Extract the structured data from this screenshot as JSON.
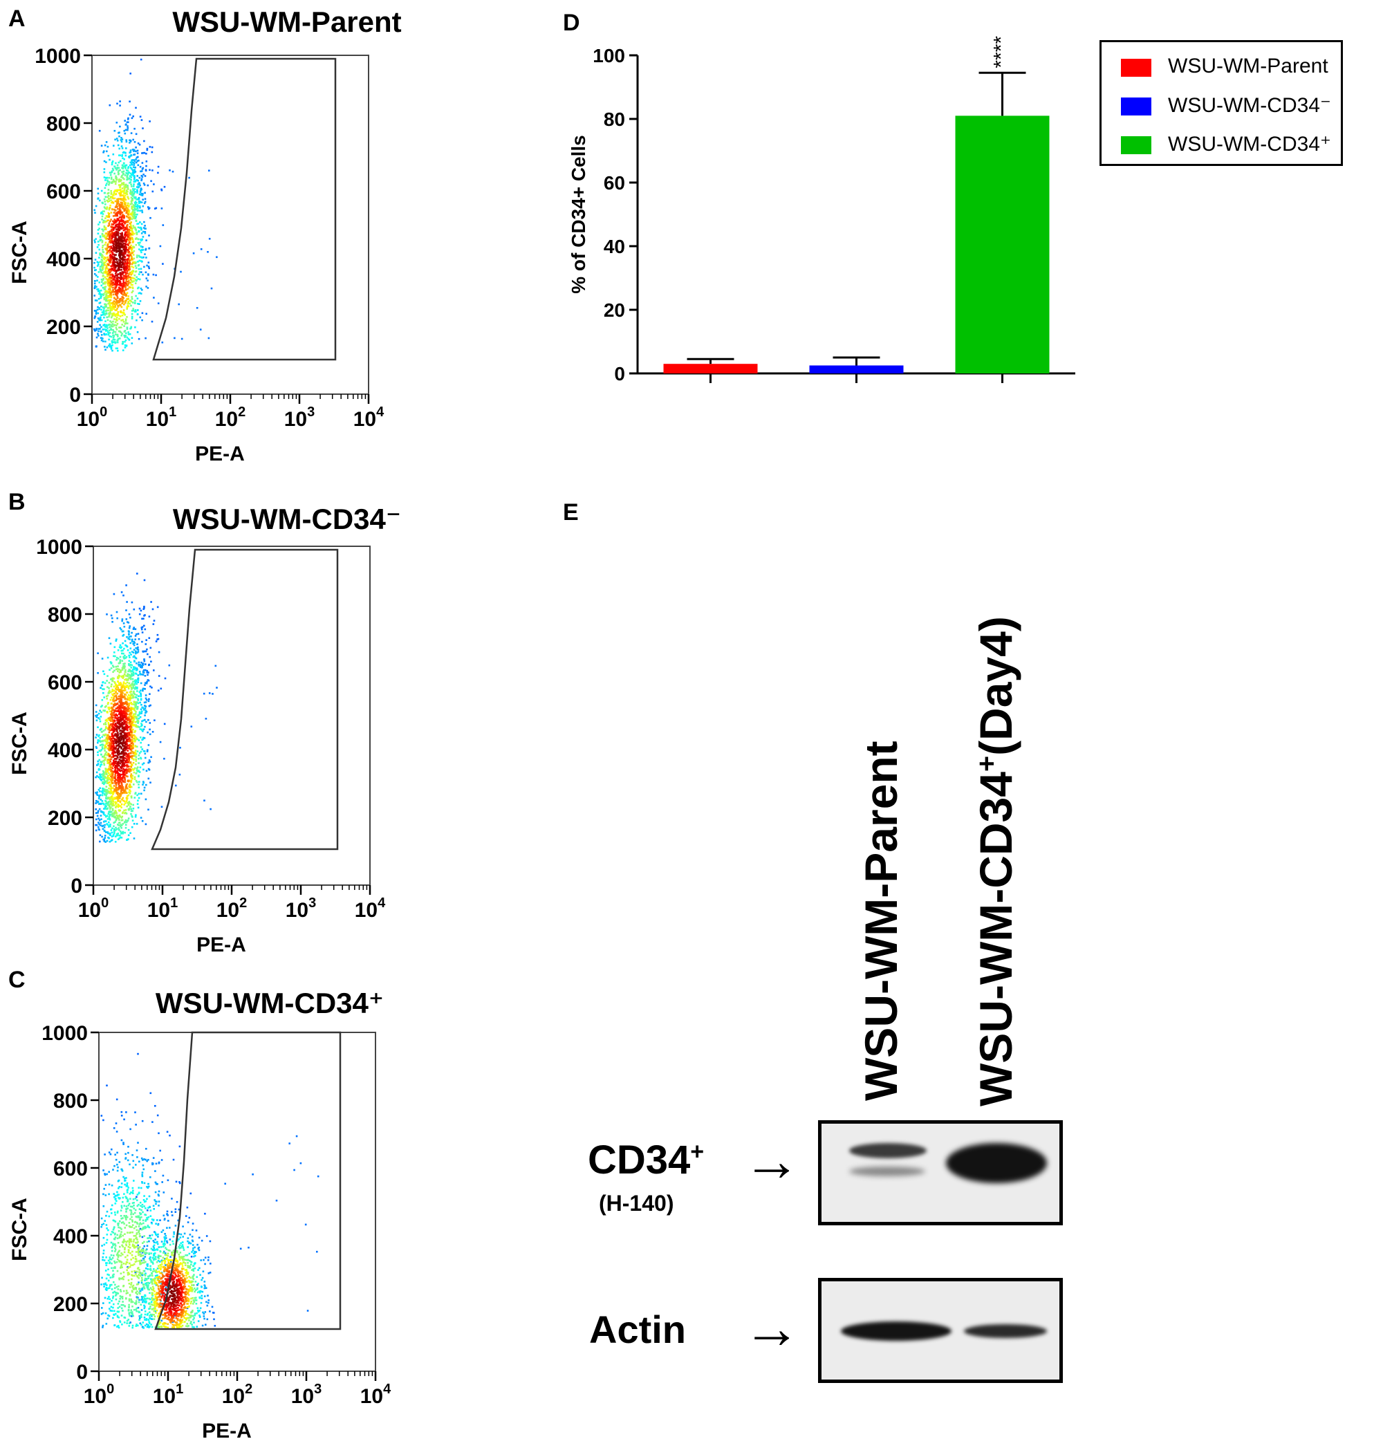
{
  "panels": {
    "A": {
      "letter": "A",
      "title": "WSU-WM-Parent",
      "xlabel": "PE-A",
      "ylabel": "FSC-A"
    },
    "B": {
      "letter": "B",
      "title": "WSU-WM-CD34⁻",
      "xlabel": "PE-A",
      "ylabel": "FSC-A"
    },
    "C": {
      "letter": "C",
      "title": "WSU-WM-CD34⁺",
      "xlabel": "PE-A",
      "ylabel": "FSC-A"
    },
    "D": {
      "letter": "D"
    },
    "E": {
      "letter": "E"
    }
  },
  "flow_axes": {
    "y_ticks": [
      "0",
      "200",
      "400",
      "600",
      "800",
      "1000"
    ],
    "x_ticks": [
      {
        "base": "10",
        "exp": "0"
      },
      {
        "base": "10",
        "exp": "1"
      },
      {
        "base": "10",
        "exp": "2"
      },
      {
        "base": "10",
        "exp": "3"
      },
      {
        "base": "10",
        "exp": "4"
      }
    ],
    "xlim_log10": [
      0,
      4
    ],
    "ylim": [
      0,
      1000
    ]
  },
  "chart_data": {
    "type": "bar",
    "categories": [
      "WSU-WM-Parent",
      "WSU-WM-CD34⁻",
      "WSU-WM-CD34⁺"
    ],
    "values": [
      3,
      2.5,
      81
    ],
    "errors": [
      1.5,
      2.5,
      13.5
    ],
    "colors": [
      "#ff0000",
      "#0000ff",
      "#00c000"
    ],
    "ylabel": "% of CD34+ Cells",
    "ylim": [
      0,
      100
    ],
    "yticks": [
      "0",
      "20",
      "40",
      "60",
      "80",
      "100"
    ],
    "annotation": "****",
    "legend": [
      "WSU-WM-Parent",
      "WSU-WM-CD34⁻",
      "WSU-WM-CD34⁺"
    ],
    "legend_position": "top-right"
  },
  "western_blot": {
    "lanes": [
      {
        "main": "WSU-WM-Parent",
        "sup": "",
        "tail": ""
      },
      {
        "main": "WSU-WM-CD34",
        "sup": "+",
        "tail": "(Day4)"
      }
    ],
    "cd34_label": "CD34",
    "cd34_sup": "+",
    "cd34_sub": "(H-140)",
    "actin_label": "Actin",
    "arrow": "→"
  }
}
